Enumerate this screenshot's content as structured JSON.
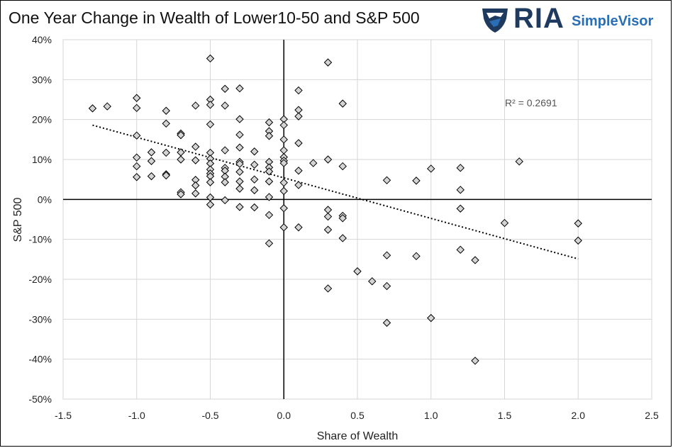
{
  "title": "One Year Change in Wealth of Lower10-50 and S&P 500",
  "logo": {
    "ria": "RIA",
    "simplevisor": "SimpleVisor"
  },
  "chart_data": {
    "type": "scatter",
    "title": "One Year Change in Wealth of Lower10-50 and S&P 500",
    "xlabel": "Share of Wealth",
    "ylabel": "S&P 500",
    "xlim": [
      -1.5,
      2.5
    ],
    "ylim": [
      -50,
      40
    ],
    "x_ticks": [
      "-1.5",
      "-1.0",
      "-0.5",
      "0.0",
      "0.5",
      "1.0",
      "1.5",
      "2.0",
      "2.5"
    ],
    "y_ticks": [
      "40%",
      "30%",
      "20%",
      "10%",
      "0%",
      "-10%",
      "-20%",
      "-30%",
      "-40%",
      "-50%"
    ],
    "grid": true,
    "marker": "diamond",
    "marker_color": "#d4d4d4",
    "annotation": "R² = 0.2691",
    "trendline": {
      "style": "dotted",
      "x": [
        -1.3,
        2.0
      ],
      "y": [
        18.6,
        -14.9
      ]
    },
    "points": [
      [
        -1.3,
        22.8
      ],
      [
        -1.2,
        23.3
      ],
      [
        -1.0,
        25.4
      ],
      [
        -1.0,
        22.9
      ],
      [
        -1.0,
        16.0
      ],
      [
        -1.0,
        10.5
      ],
      [
        -1.0,
        8.3
      ],
      [
        -1.0,
        5.6
      ],
      [
        -0.9,
        11.8
      ],
      [
        -0.9,
        9.6
      ],
      [
        -0.9,
        5.8
      ],
      [
        -0.8,
        22.2
      ],
      [
        -0.8,
        19.0
      ],
      [
        -0.8,
        11.7
      ],
      [
        -0.8,
        6.3
      ],
      [
        -0.8,
        6.0
      ],
      [
        -0.7,
        16.5
      ],
      [
        -0.7,
        16.1
      ],
      [
        -0.7,
        11.8
      ],
      [
        -0.7,
        10.0
      ],
      [
        -0.7,
        1.8
      ],
      [
        -0.7,
        1.3
      ],
      [
        -0.6,
        23.5
      ],
      [
        -0.6,
        13.2
      ],
      [
        -0.6,
        9.8
      ],
      [
        -0.6,
        4.9
      ],
      [
        -0.6,
        3.5
      ],
      [
        -0.6,
        1.5
      ],
      [
        -0.5,
        35.3
      ],
      [
        -0.5,
        25.0
      ],
      [
        -0.5,
        23.7
      ],
      [
        -0.5,
        18.8
      ],
      [
        -0.5,
        11.7
      ],
      [
        -0.5,
        10.2
      ],
      [
        -0.5,
        9.0
      ],
      [
        -0.5,
        7.5
      ],
      [
        -0.5,
        6.5
      ],
      [
        -0.5,
        5.8
      ],
      [
        -0.5,
        4.3
      ],
      [
        -0.5,
        0.5
      ],
      [
        -0.5,
        -1.3
      ],
      [
        -0.4,
        27.7
      ],
      [
        -0.4,
        23.5
      ],
      [
        -0.4,
        12.3
      ],
      [
        -0.4,
        7.9
      ],
      [
        -0.4,
        7.2
      ],
      [
        -0.4,
        5.7
      ],
      [
        -0.4,
        4.3
      ],
      [
        -0.4,
        -0.2
      ],
      [
        -0.3,
        27.8
      ],
      [
        -0.3,
        20.1
      ],
      [
        -0.3,
        16.2
      ],
      [
        -0.3,
        13.0
      ],
      [
        -0.3,
        9.4
      ],
      [
        -0.3,
        8.9
      ],
      [
        -0.3,
        6.9
      ],
      [
        -0.3,
        4.5
      ],
      [
        -0.3,
        2.7
      ],
      [
        -0.3,
        -1.9
      ],
      [
        -0.2,
        12.0
      ],
      [
        -0.2,
        8.7
      ],
      [
        -0.2,
        5.0
      ],
      [
        -0.2,
        2.3
      ],
      [
        -0.2,
        -2.0
      ],
      [
        -0.1,
        19.3
      ],
      [
        -0.1,
        17.1
      ],
      [
        -0.1,
        15.9
      ],
      [
        -0.1,
        9.4
      ],
      [
        -0.1,
        8.0
      ],
      [
        -0.1,
        7.0
      ],
      [
        -0.1,
        4.5
      ],
      [
        -0.1,
        0.6
      ],
      [
        -0.1,
        -3.9
      ],
      [
        -0.1,
        -11.0
      ],
      [
        0.0,
        20.1
      ],
      [
        0.0,
        18.6
      ],
      [
        0.0,
        15.0
      ],
      [
        0.0,
        12.3
      ],
      [
        0.0,
        10.6
      ],
      [
        0.0,
        9.7
      ],
      [
        0.0,
        9.1
      ],
      [
        0.0,
        4.2
      ],
      [
        0.0,
        2.1
      ],
      [
        0.0,
        -2.2
      ],
      [
        0.0,
        -7.0
      ],
      [
        0.1,
        27.3
      ],
      [
        0.1,
        22.4
      ],
      [
        0.1,
        20.8
      ],
      [
        0.1,
        14.1
      ],
      [
        0.1,
        7.2
      ],
      [
        0.1,
        3.6
      ],
      [
        0.1,
        -7.0
      ],
      [
        0.2,
        9.1
      ],
      [
        0.3,
        34.3
      ],
      [
        0.3,
        10.0
      ],
      [
        0.3,
        -2.6
      ],
      [
        0.3,
        -4.3
      ],
      [
        0.3,
        -7.6
      ],
      [
        0.3,
        -22.3
      ],
      [
        0.4,
        24.0
      ],
      [
        0.4,
        8.3
      ],
      [
        0.4,
        -4.1
      ],
      [
        0.4,
        -4.7
      ],
      [
        0.4,
        -9.7
      ],
      [
        0.5,
        -18.0
      ],
      [
        0.6,
        -20.5
      ],
      [
        0.7,
        4.8
      ],
      [
        0.7,
        -14.0
      ],
      [
        0.7,
        -21.7
      ],
      [
        0.7,
        -30.9
      ],
      [
        0.9,
        4.7
      ],
      [
        0.9,
        -14.2
      ],
      [
        1.0,
        7.7
      ],
      [
        1.0,
        -29.7
      ],
      [
        1.2,
        7.9
      ],
      [
        1.2,
        2.4
      ],
      [
        1.2,
        -2.3
      ],
      [
        1.2,
        -12.6
      ],
      [
        1.3,
        -15.2
      ],
      [
        1.3,
        -40.4
      ],
      [
        1.5,
        -5.9
      ],
      [
        1.6,
        9.5
      ],
      [
        2.0,
        -6.0
      ],
      [
        2.0,
        -10.3
      ]
    ]
  }
}
